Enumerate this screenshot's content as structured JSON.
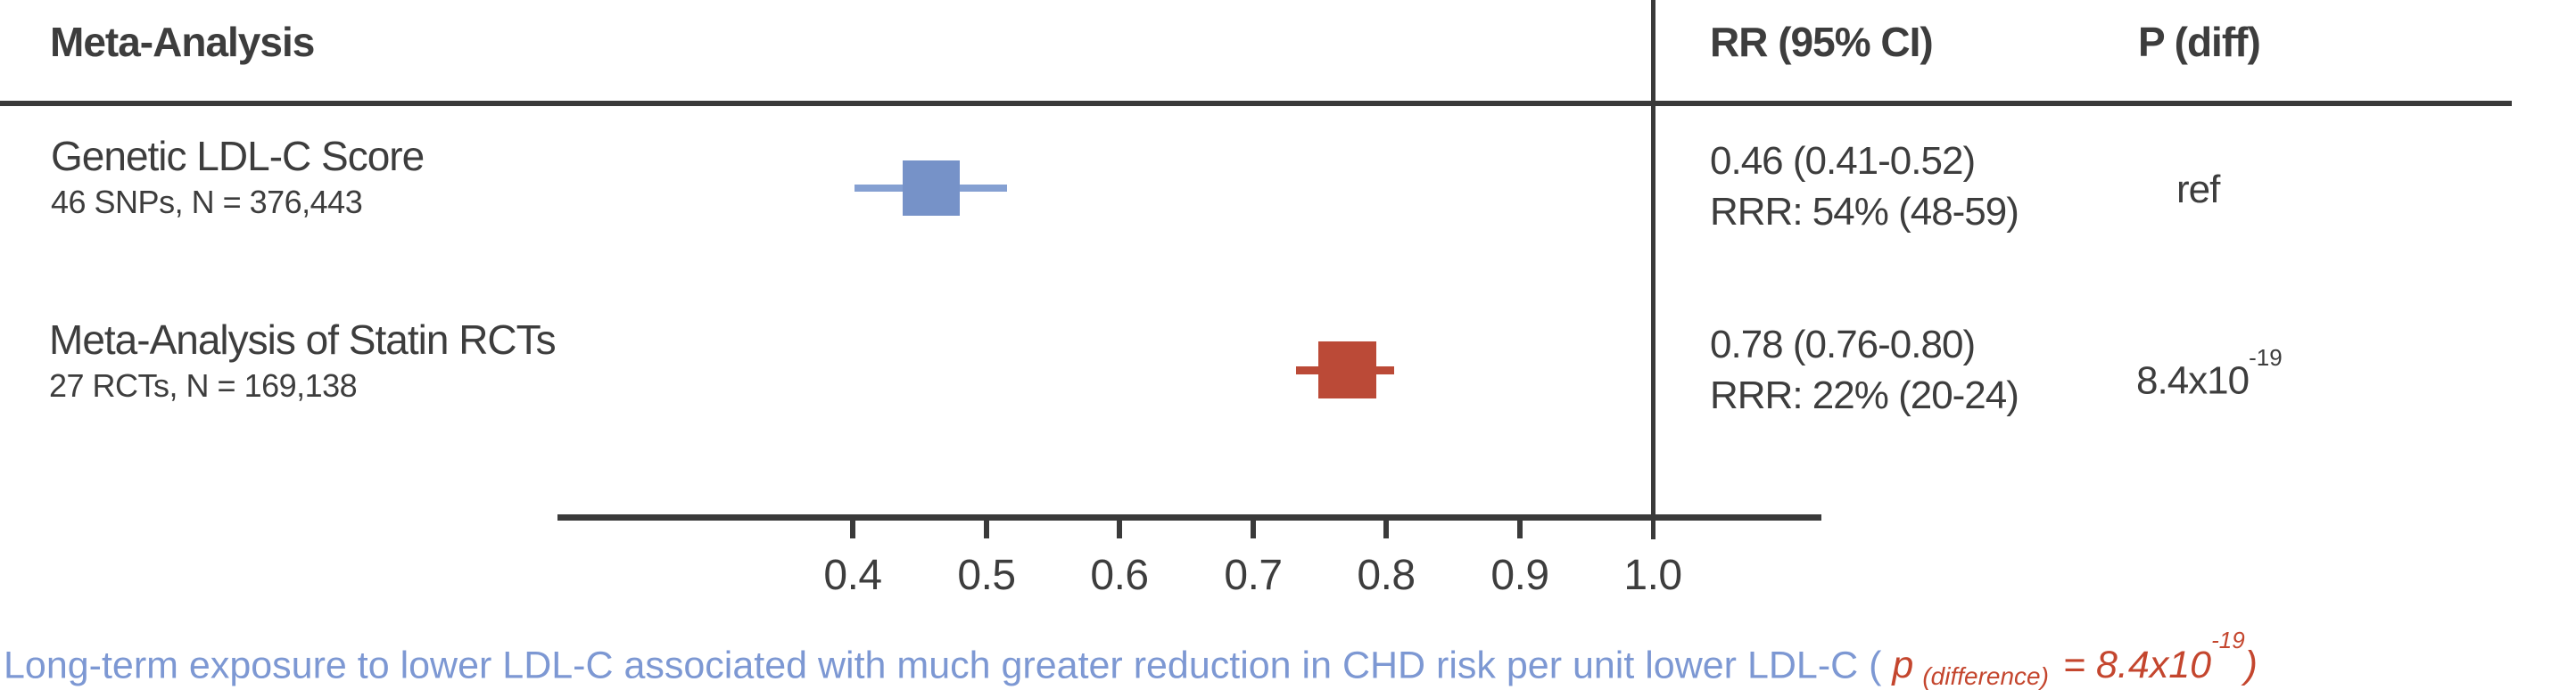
{
  "header": {
    "study_col": "Meta-Analysis",
    "rr_col": "RR (95% CI)",
    "p_col": "P (diff)"
  },
  "rows": [
    {
      "name": "Genetic LDL-C Score",
      "detail": "46 SNPs, N = 376,443",
      "rr_text": "0.46 (0.41-0.52)",
      "rrr_text": "RRR: 54% (48-59)",
      "p_diff": "ref"
    },
    {
      "name": "Meta-Analysis of Statin RCTs",
      "detail": "27 RCTs, N = 169,138",
      "rr_text": "0.78 (0.76-0.80)",
      "rrr_text": "RRR: 22% (20-24)",
      "p_diff_base": "8.4x10",
      "p_diff_exp": "-19"
    }
  ],
  "axis": {
    "tick_labels": [
      "0.4",
      "0.5",
      "0.6",
      "0.7",
      "0.8",
      "0.9",
      "1.0"
    ]
  },
  "footer": {
    "main_text": "Long-term exposure to lower LDL-C associated with much greater reduction in CHD risk per unit lower LDL-C ( ",
    "p_symbol": "p",
    "p_sub": "(difference)",
    "equals": " = 8.4x10",
    "exponent": "-19",
    "close_paren": ")"
  },
  "colors": {
    "genetic_marker": "#7692c8",
    "genetic_whisker": "#85a0d2",
    "statin_marker": "#bb4a37",
    "line": "#3a3a3a",
    "text": "#3d3d3d",
    "caption_blue": "#7d98d3",
    "caption_red": "#c4462e"
  },
  "chart_data": {
    "type": "forest",
    "title": "",
    "xlabel": "",
    "x_axis": {
      "ticks": [
        0.4,
        0.5,
        0.6,
        0.7,
        0.8,
        0.9,
        1.0
      ],
      "range": [
        0.38,
        1.13
      ],
      "reference_line": 1.0
    },
    "series": [
      {
        "name": "Genetic LDL-C Score",
        "subtitle": "46 SNPs, N = 376,443",
        "rr": 0.46,
        "ci": [
          0.41,
          0.52
        ],
        "rrr_pct": 54,
        "rrr_ci": [
          48,
          59
        ],
        "p_diff": "ref",
        "color": "#7692c8"
      },
      {
        "name": "Meta-Analysis of Statin RCTs",
        "subtitle": "27 RCTs, N = 169,138",
        "rr": 0.78,
        "ci": [
          0.76,
          0.8
        ],
        "rrr_pct": 22,
        "rrr_ci": [
          20,
          24
        ],
        "p_diff": "8.4x10^-19",
        "color": "#bb4a37"
      }
    ],
    "caption": "Long-term exposure to lower LDL-C associated with much greater reduction in CHD risk per unit lower LDL-C (p(difference) = 8.4x10^-19)",
    "legend_position": "none",
    "grid": false
  }
}
